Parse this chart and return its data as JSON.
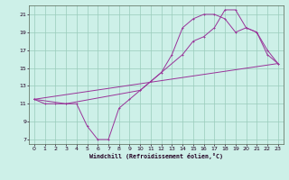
{
  "xlabel": "Windchill (Refroidissement éolien,°C)",
  "xlim": [
    -0.5,
    23.5
  ],
  "ylim": [
    6.5,
    22
  ],
  "yticks": [
    7,
    9,
    11,
    13,
    15,
    17,
    19,
    21
  ],
  "xticks": [
    0,
    1,
    2,
    3,
    4,
    5,
    6,
    7,
    8,
    9,
    10,
    11,
    12,
    13,
    14,
    15,
    16,
    17,
    18,
    19,
    20,
    21,
    22,
    23
  ],
  "background_color": "#cdf0e8",
  "grid_color": "#99ccbb",
  "line_color": "#993399",
  "line1_x": [
    0,
    1,
    2,
    3,
    4,
    5,
    6,
    7,
    8,
    9,
    10,
    11,
    12,
    13,
    14,
    15,
    16,
    17,
    18,
    19,
    20,
    21,
    22,
    23
  ],
  "line1_y": [
    11.5,
    11.0,
    11.0,
    11.0,
    11.0,
    8.5,
    7.0,
    7.0,
    10.5,
    11.5,
    12.5,
    13.5,
    14.5,
    16.5,
    19.5,
    20.5,
    21.0,
    21.0,
    20.5,
    19.0,
    19.5,
    19.0,
    16.5,
    15.5
  ],
  "line2_x": [
    0,
    3,
    10,
    14,
    15,
    16,
    17,
    18,
    19,
    20,
    21,
    22,
    23
  ],
  "line2_y": [
    11.5,
    11.0,
    12.5,
    16.5,
    18.0,
    18.5,
    19.5,
    21.5,
    21.5,
    19.5,
    19.0,
    17.0,
    15.5
  ],
  "line3_x": [
    0,
    23
  ],
  "line3_y": [
    11.5,
    15.5
  ]
}
